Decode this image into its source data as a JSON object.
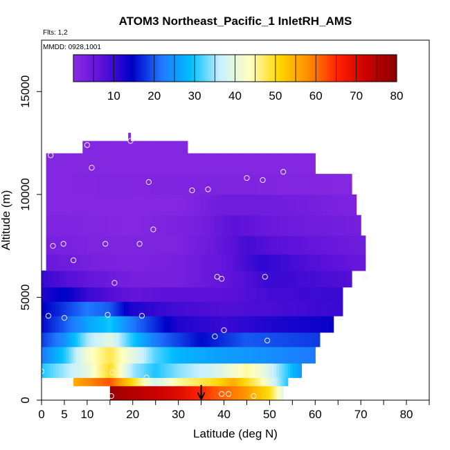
{
  "chart_data": {
    "type": "heatmap",
    "title": "ATOM3 Northeast_Pacific_1 InletRH_AMS",
    "flights_label": "Flts: 1,2",
    "dates_label": "MMDD: 0928,1001",
    "xlabel": "Latitude (deg N)",
    "ylabel": "Altitude (m)",
    "xlim": [
      0,
      85
    ],
    "ylim": [
      0,
      17500
    ],
    "x_ticks": [
      0,
      5,
      10,
      20,
      30,
      40,
      50,
      60,
      70,
      80
    ],
    "x_minor_ticks": [
      15,
      25,
      35,
      45,
      55,
      65,
      75,
      85
    ],
    "y_ticks": [
      0,
      5000,
      10000,
      15000
    ],
    "colorbar": {
      "min": 0,
      "max": 80,
      "ticks": [
        10,
        20,
        30,
        40,
        50,
        60,
        70,
        80
      ],
      "stops": [
        "#8a2be2",
        "#5a10d8",
        "#0000c8",
        "#1e78ff",
        "#00bfff",
        "#c8f0ff",
        "#ffffc0",
        "#ffd700",
        "#ff8c00",
        "#ff2000",
        "#c80000",
        "#8b0000"
      ]
    },
    "arrow_latitude": 35,
    "rh_field": [
      {
        "y": [
          0,
          700
        ],
        "points": [
          [
            15,
            78
          ],
          [
            20,
            75
          ],
          [
            30,
            70
          ],
          [
            38,
            62
          ],
          [
            44,
            58
          ],
          [
            50,
            50
          ],
          [
            53,
            40
          ]
        ]
      },
      {
        "y": [
          700,
          1100
        ],
        "points": [
          [
            7,
            55
          ],
          [
            10,
            58
          ],
          [
            15,
            62
          ],
          [
            20,
            50
          ],
          [
            25,
            38
          ],
          [
            30,
            45
          ],
          [
            38,
            50
          ],
          [
            42,
            55
          ],
          [
            48,
            45
          ],
          [
            54,
            30
          ]
        ]
      },
      {
        "y": [
          1100,
          1800
        ],
        "points": [
          [
            0,
            30
          ],
          [
            5,
            35
          ],
          [
            10,
            40
          ],
          [
            15,
            50
          ],
          [
            20,
            35
          ],
          [
            25,
            30
          ],
          [
            30,
            34
          ],
          [
            38,
            38
          ],
          [
            45,
            45
          ],
          [
            49,
            40
          ],
          [
            57,
            25
          ]
        ]
      },
      {
        "y": [
          1800,
          2600
        ],
        "points": [
          [
            0,
            22
          ],
          [
            5,
            30
          ],
          [
            10,
            42
          ],
          [
            15,
            48
          ],
          [
            20,
            40
          ],
          [
            25,
            32
          ],
          [
            30,
            28
          ],
          [
            38,
            26
          ],
          [
            45,
            25
          ],
          [
            60,
            22
          ]
        ]
      },
      {
        "y": [
          2600,
          3300
        ],
        "points": [
          [
            0,
            18
          ],
          [
            5,
            24
          ],
          [
            10,
            35
          ],
          [
            15,
            40
          ],
          [
            20,
            30
          ],
          [
            25,
            22
          ],
          [
            35,
            15
          ],
          [
            45,
            20
          ],
          [
            61,
            18
          ]
        ]
      },
      {
        "y": [
          3300,
          4100
        ],
        "points": [
          [
            0,
            15
          ],
          [
            5,
            20
          ],
          [
            10,
            26
          ],
          [
            15,
            30
          ],
          [
            20,
            22
          ],
          [
            30,
            12
          ],
          [
            40,
            10
          ],
          [
            50,
            12
          ],
          [
            64,
            14
          ]
        ]
      },
      {
        "y": [
          4100,
          4800
        ],
        "points": [
          [
            0,
            14
          ],
          [
            5,
            18
          ],
          [
            10,
            22
          ],
          [
            15,
            20
          ],
          [
            20,
            12
          ],
          [
            30,
            9
          ],
          [
            40,
            8
          ],
          [
            55,
            9
          ],
          [
            66,
            10
          ]
        ]
      },
      {
        "y": [
          4800,
          5500
        ],
        "points": [
          [
            0,
            12
          ],
          [
            5,
            15
          ],
          [
            10,
            10
          ],
          [
            20,
            6
          ],
          [
            30,
            7
          ],
          [
            40,
            7
          ],
          [
            50,
            9
          ],
          [
            66,
            10
          ]
        ]
      },
      {
        "y": [
          5500,
          6300
        ],
        "points": [
          [
            0,
            10
          ],
          [
            5,
            8
          ],
          [
            10,
            6
          ],
          [
            20,
            3
          ],
          [
            30,
            3
          ],
          [
            40,
            6
          ],
          [
            50,
            10
          ],
          [
            68,
            8
          ]
        ]
      },
      {
        "y": [
          6300,
          7100
        ],
        "points": [
          [
            1,
            5
          ],
          [
            10,
            3
          ],
          [
            20,
            2
          ],
          [
            30,
            3
          ],
          [
            40,
            6
          ],
          [
            48,
            11
          ],
          [
            55,
            9
          ],
          [
            71,
            5
          ]
        ]
      },
      {
        "y": [
          7100,
          8000
        ],
        "points": [
          [
            1,
            3
          ],
          [
            10,
            2
          ],
          [
            30,
            2
          ],
          [
            38,
            5
          ],
          [
            45,
            9
          ],
          [
            52,
            7
          ],
          [
            71,
            4
          ]
        ]
      },
      {
        "y": [
          8000,
          9000
        ],
        "points": [
          [
            1,
            2
          ],
          [
            20,
            1
          ],
          [
            35,
            3
          ],
          [
            42,
            7
          ],
          [
            50,
            5
          ],
          [
            70,
            3
          ]
        ]
      },
      {
        "y": [
          9000,
          10000
        ],
        "points": [
          [
            1,
            1
          ],
          [
            30,
            1
          ],
          [
            40,
            4
          ],
          [
            50,
            4
          ],
          [
            69,
            2
          ]
        ]
      },
      {
        "y": [
          10000,
          11000
        ],
        "points": [
          [
            1,
            1
          ],
          [
            40,
            2
          ],
          [
            68,
            1
          ]
        ]
      },
      {
        "y": [
          11000,
          12000
        ],
        "points": [
          [
            1,
            1
          ],
          [
            60,
            1
          ]
        ]
      },
      {
        "y": [
          12000,
          12600
        ],
        "points": [
          [
            9,
            1
          ],
          [
            32,
            1
          ]
        ]
      },
      {
        "y": [
          12600,
          13000
        ],
        "points": [
          [
            19,
            1
          ],
          [
            19.5,
            1
          ]
        ]
      }
    ],
    "flight_track_points": [
      [
        0,
        1400
      ],
      [
        1.5,
        4100
      ],
      [
        5,
        4000
      ],
      [
        4.8,
        7600
      ],
      [
        2.5,
        7500
      ],
      [
        7,
        6800
      ],
      [
        2,
        11900
      ],
      [
        10,
        12400
      ],
      [
        11,
        11300
      ],
      [
        14,
        7600
      ],
      [
        14.5,
        4150
      ],
      [
        16,
        5700
      ],
      [
        15.5,
        1350
      ],
      [
        15.3,
        200
      ],
      [
        19.5,
        12600
      ],
      [
        21.5,
        7600
      ],
      [
        22,
        4100
      ],
      [
        23,
        1100
      ],
      [
        23.5,
        10600
      ],
      [
        24.5,
        8300
      ],
      [
        33,
        10200
      ],
      [
        36.5,
        10250
      ],
      [
        38.5,
        6000
      ],
      [
        39.5,
        5900
      ],
      [
        38,
        3100
      ],
      [
        40,
        3400
      ],
      [
        39.5,
        300
      ],
      [
        41,
        300
      ],
      [
        45,
        10800
      ],
      [
        48.5,
        10700
      ],
      [
        49,
        6000
      ],
      [
        49.5,
        2900
      ],
      [
        46.5,
        200
      ],
      [
        53,
        11100
      ],
      [
        52,
        350
      ],
      [
        69,
        10900
      ],
      [
        71,
        6000
      ]
    ]
  }
}
